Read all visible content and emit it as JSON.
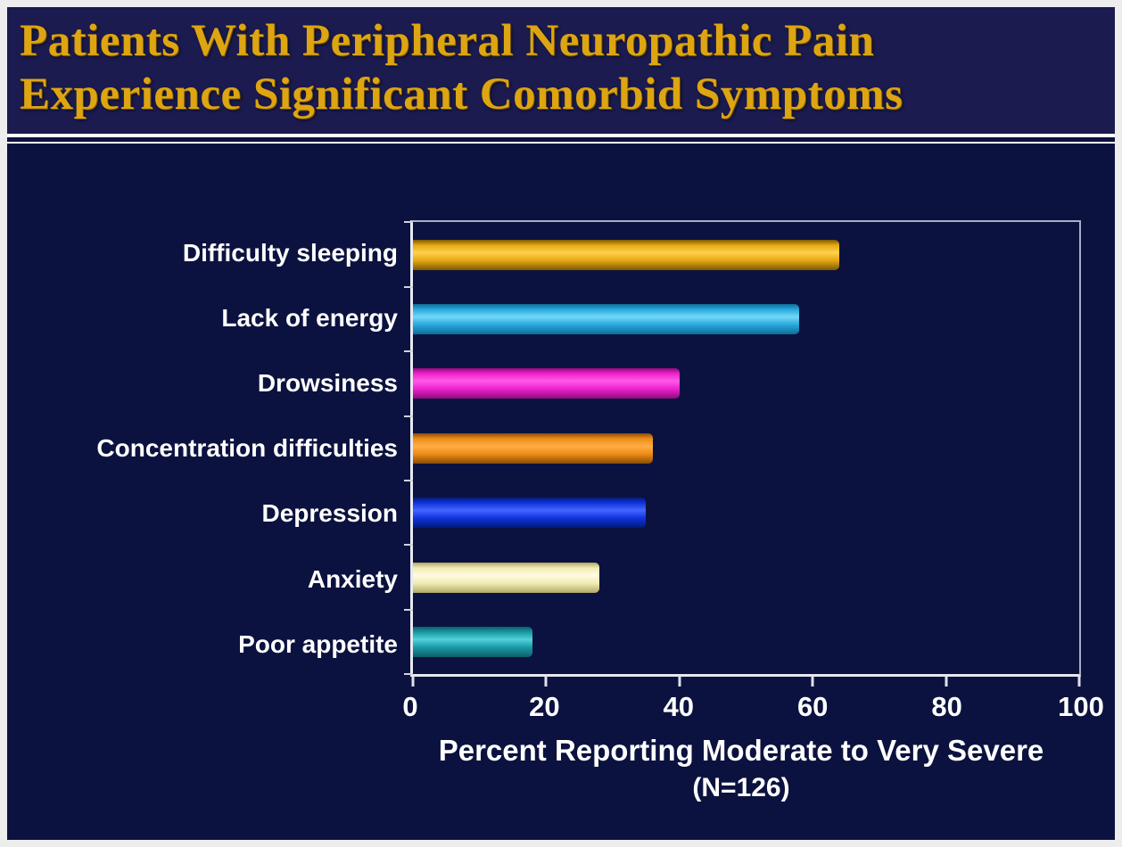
{
  "slide": {
    "title_line1": "Patients With Peripheral Neuropathic Pain",
    "title_line2": "Experience Significant Comorbid Symptoms",
    "title_color": "#dda511",
    "background": "#0c123f",
    "title_background": "#1b1b50"
  },
  "chart_data": {
    "type": "bar",
    "orientation": "horizontal",
    "title": "Patients With Peripheral Neuropathic Pain Experience Significant Comorbid Symptoms",
    "categories": [
      "Difficulty sleeping",
      "Lack of energy",
      "Drowsiness",
      "Concentration difficulties",
      "Depression",
      "Anxiety",
      "Poor appetite"
    ],
    "values": [
      64,
      58,
      40,
      36,
      35,
      28,
      18
    ],
    "bar_colors": [
      {
        "light": "#ffd24a",
        "base": "#e6a715",
        "dark": "#7a5a00"
      },
      {
        "light": "#72d9f8",
        "base": "#2aa8dd",
        "dark": "#0c6d96"
      },
      {
        "light": "#ff5ae8",
        "base": "#ee22cc",
        "dark": "#8f0b7e"
      },
      {
        "light": "#ffae45",
        "base": "#ef8c17",
        "dark": "#8a4d05"
      },
      {
        "light": "#4466ff",
        "base": "#1133dd",
        "dark": "#001a7a"
      },
      {
        "light": "#fffbe0",
        "base": "#f2ecb4",
        "dark": "#b0a868"
      },
      {
        "light": "#4fd2da",
        "base": "#1b98a6",
        "dark": "#0c5f68"
      }
    ],
    "xlabel_line1": "Percent Reporting Moderate to Very Severe",
    "xlabel_line2": "(N=126)",
    "xlim": [
      0,
      100
    ],
    "xticks": [
      0,
      20,
      40,
      60,
      80,
      100
    ],
    "grid": false,
    "legend": false
  }
}
